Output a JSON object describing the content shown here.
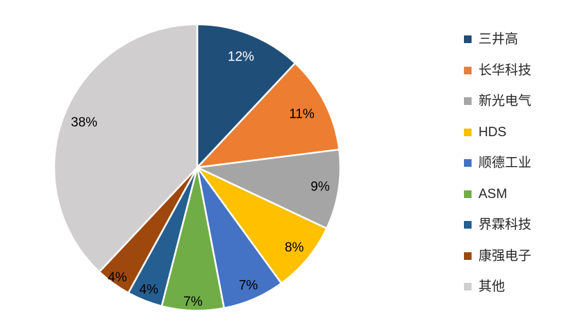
{
  "chart_data": {
    "type": "pie",
    "title": "",
    "legend_position": "right",
    "direction": "clockwise",
    "start_angle_deg": 0,
    "slice_border_color": "#FFFFFF",
    "background_color": "#FFFFFF",
    "legend_text_color": "#262626",
    "series": [
      {
        "name": "三井高",
        "value": 12,
        "label": "12%",
        "color": "#1F4E79",
        "label_color": "#FFFFFF"
      },
      {
        "name": "长华科技",
        "value": 11,
        "label": "11%",
        "color": "#ED7D31",
        "label_color": "#000000"
      },
      {
        "name": "新光电气",
        "value": 9,
        "label": "9%",
        "color": "#A5A5A5",
        "label_color": "#000000"
      },
      {
        "name": "HDS",
        "value": 8,
        "label": "8%",
        "color": "#FFC000",
        "label_color": "#000000"
      },
      {
        "name": "顺德工业",
        "value": 7,
        "label": "7%",
        "color": "#4472C4",
        "label_color": "#000000"
      },
      {
        "name": "ASM",
        "value": 7,
        "label": "7%",
        "color": "#70AD47",
        "label_color": "#000000"
      },
      {
        "name": "界霖科技",
        "value": 4,
        "label": "4%",
        "color": "#255E91",
        "label_color": "#000000"
      },
      {
        "name": "康强电子",
        "value": 4,
        "label": "4%",
        "color": "#9E480E",
        "label_color": "#000000"
      },
      {
        "name": "其他",
        "value": 38,
        "label": "38%",
        "color": "#D0CECE",
        "label_color": "#000000"
      }
    ]
  }
}
